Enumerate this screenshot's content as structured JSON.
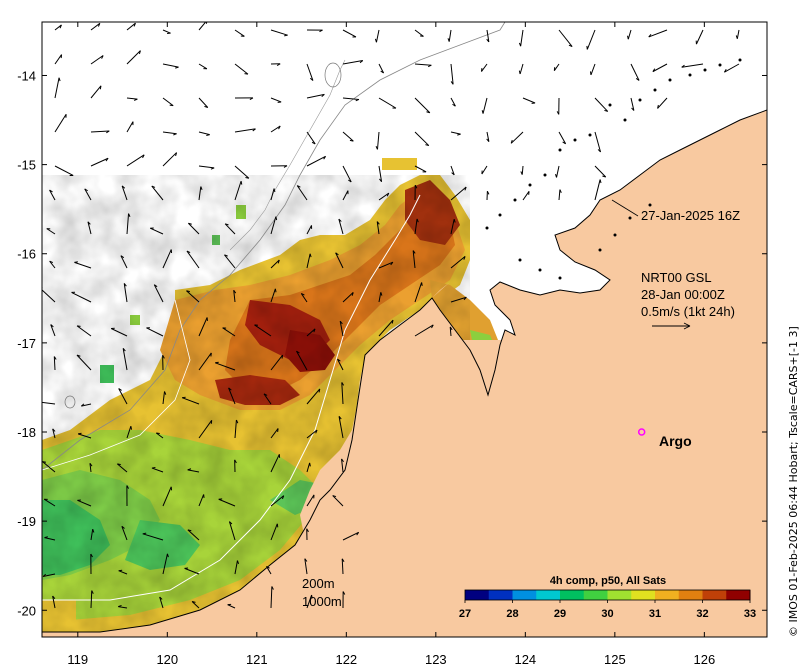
{
  "map": {
    "x_ticks": [
      119,
      120,
      121,
      122,
      123,
      124,
      125,
      126
    ],
    "y_ticks": [
      -14,
      -15,
      -16,
      -17,
      -18,
      -19,
      -20
    ],
    "x_range": [
      118.6,
      126.7
    ],
    "y_range": [
      -20.3,
      -13.4
    ],
    "land_color": "#f8c9a0",
    "ocean_color": "#ffffff"
  },
  "annotations": {
    "track_label": "27-Jan-2025 16Z",
    "current_source": "NRT00 GSL",
    "current_time": "28-Jan 00:00Z",
    "vector_scale": "0.5m/s (1kt 24h)",
    "contour_200": "200m",
    "contour_1000": "1000m",
    "argo_label": "Argo",
    "side_credit": "© IMOS 01-Feb-2025 06:44 Hobart; Tscale=CARS+[-1 3]"
  },
  "colorbar": {
    "title": "4h comp, p50, All Sats",
    "ticks": [
      27,
      28,
      29,
      30,
      31,
      32,
      33
    ],
    "colors": [
      "#000080",
      "#0030c0",
      "#0090e0",
      "#00c8d0",
      "#00c060",
      "#40d040",
      "#a0e030",
      "#e0e020",
      "#f0b020",
      "#e08010",
      "#c04008",
      "#900000"
    ]
  },
  "argo": {
    "lon": 125.3,
    "lat": -18.0,
    "color": "#ff00ff"
  }
}
